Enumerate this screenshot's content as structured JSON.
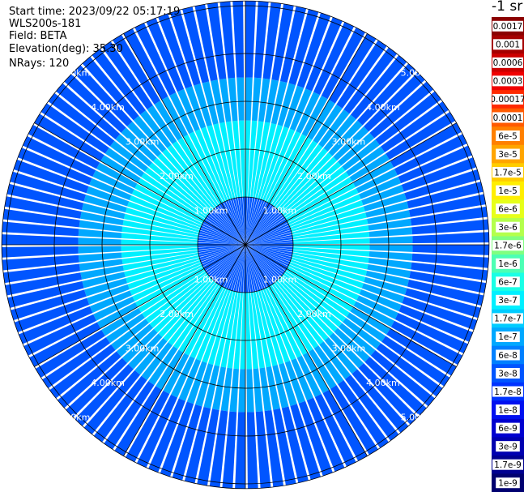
{
  "header": {
    "start_time": "Start time: 2023/09/22 05:17:19",
    "instrument": "WLS200s-181",
    "field": "Field: BETA",
    "elevation": "Elevation(deg): 35.30",
    "nrays": "NRays: 120"
  },
  "colorbar": {
    "units": "-1 sr",
    "labels": [
      "0.0017",
      "0.001",
      "0.0006",
      "0.0003",
      "0.00017",
      "0.0001",
      "6e-5",
      "3e-5",
      "1.7e-5",
      "1e-5",
      "6e-6",
      "3e-6",
      "1.7e-6",
      "1e-6",
      "6e-7",
      "3e-7",
      "1.7e-7",
      "1e-7",
      "6e-8",
      "3e-8",
      "1.7e-8",
      "1e-8",
      "6e-9",
      "3e-9",
      "1.7e-9",
      "1e-9"
    ],
    "colors": [
      "#8b0000",
      "#a50000",
      "#cc0000",
      "#f00000",
      "#ff2a00",
      "#ff5a00",
      "#ff8000",
      "#ffa500",
      "#ffcc00",
      "#ffee00",
      "#e6ff1a",
      "#b4ff4c",
      "#80ff80",
      "#4cffb4",
      "#1affe6",
      "#00f0ff",
      "#00ccff",
      "#00a8ff",
      "#0080ff",
      "#0055ff",
      "#0033ff",
      "#0010f0",
      "#0000d0",
      "#0000b0",
      "#000090",
      "#000070"
    ]
  },
  "chart_data": {
    "type": "polar_ppi",
    "field": "BETA",
    "units": "sr-1",
    "n_rays": 120,
    "elevation_deg": 35.3,
    "range_rings_km": [
      1,
      2,
      3,
      4,
      5
    ],
    "range_labels": [
      "1.00km",
      "2.00km",
      "3.00km",
      "4.00km",
      "5.00km"
    ],
    "max_range_km": 5.1,
    "radial_line_step_deg": 30,
    "bands": [
      {
        "from_km": 0.0,
        "to_km": 1.0,
        "value": "3e-8"
      },
      {
        "from_km": 1.0,
        "to_km": 2.6,
        "value": "3e-7"
      },
      {
        "from_km": 2.6,
        "to_km": 3.5,
        "value": "1e-7"
      },
      {
        "from_km": 3.5,
        "to_km": 5.1,
        "value": "3e-8"
      }
    ]
  }
}
